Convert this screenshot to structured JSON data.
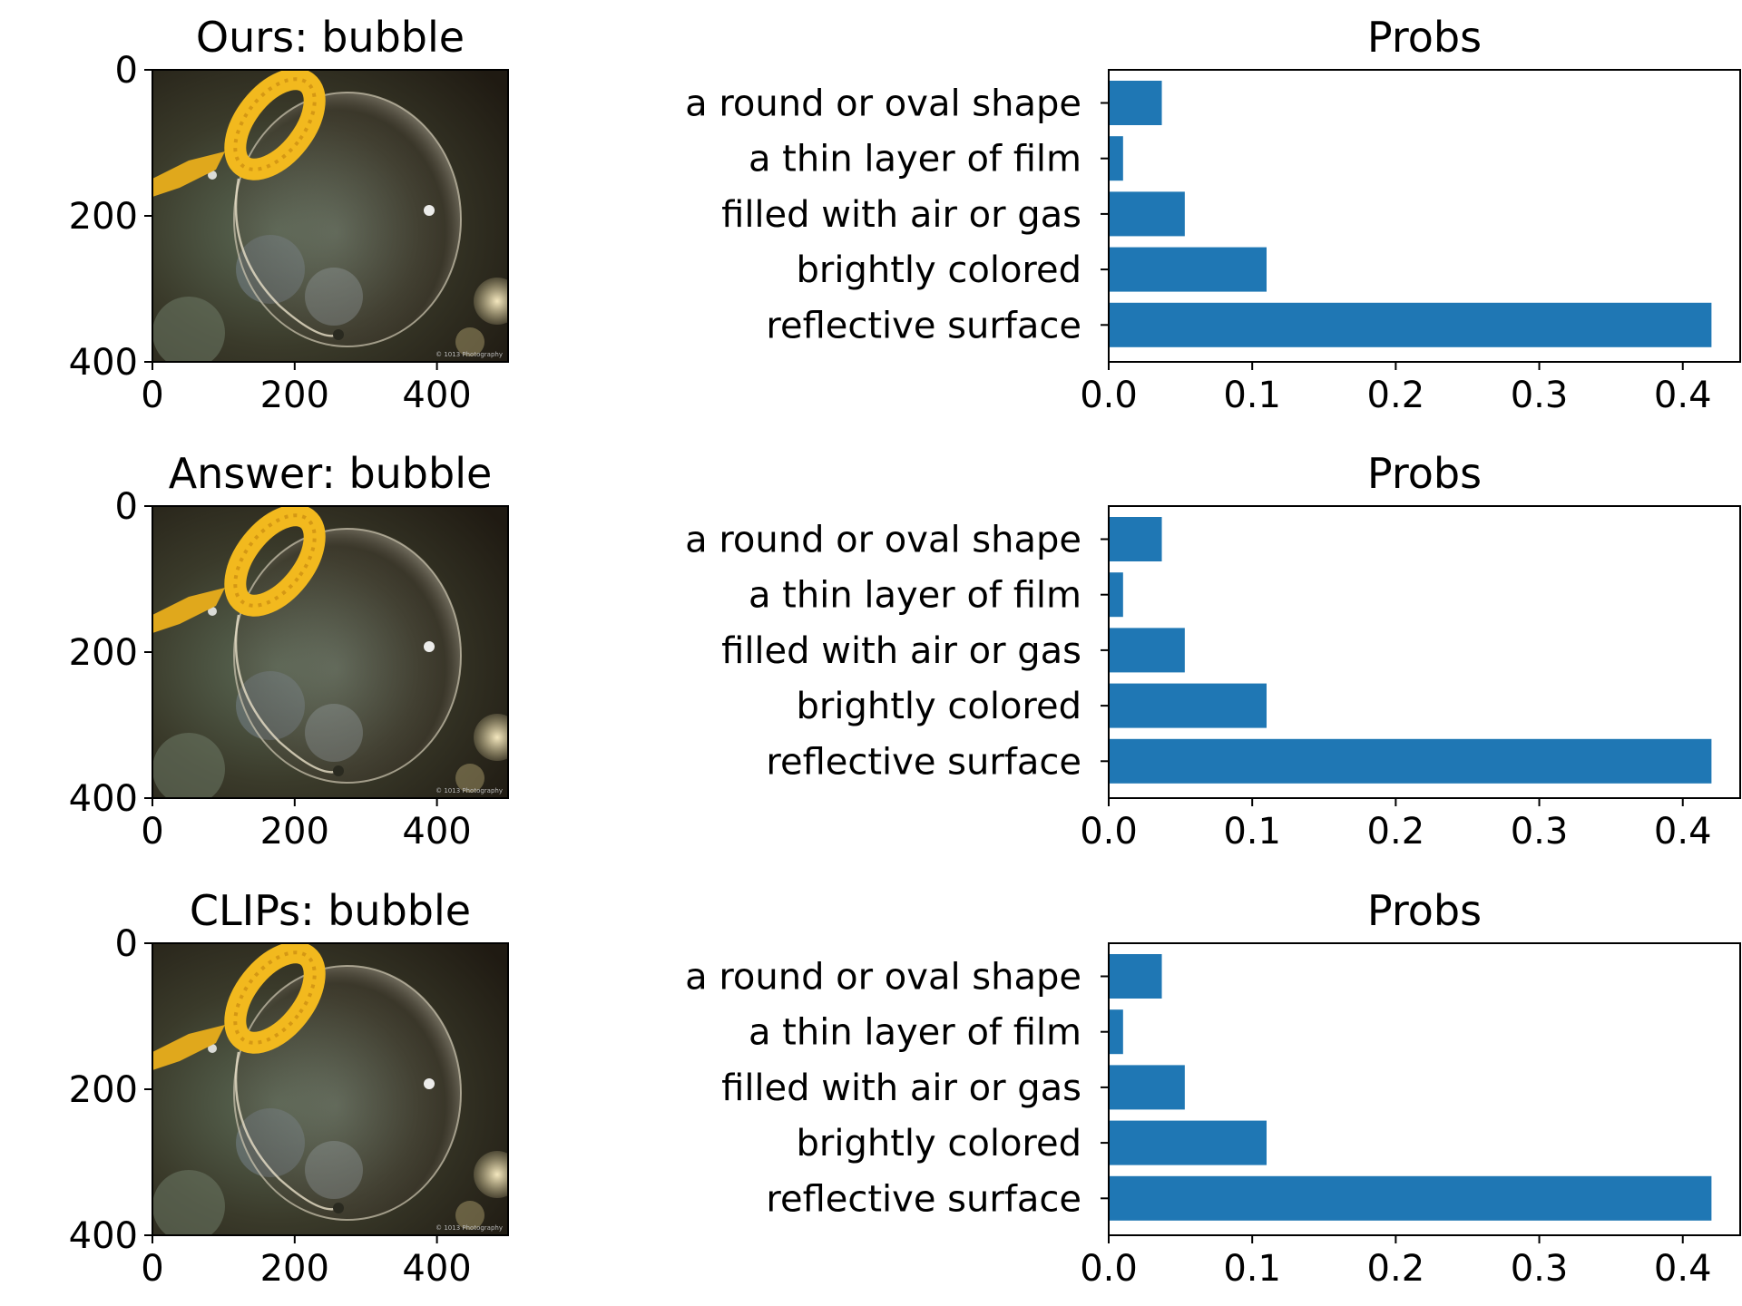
{
  "bar_color": "#1f77b4",
  "chart_data": [
    {
      "type": "image",
      "title": "Ours: bubble",
      "image_subject": "soap bubble on a yellow bubble wand",
      "x_ticks": [
        "0",
        "200",
        "400"
      ],
      "y_ticks": [
        "0",
        "200",
        "400"
      ],
      "xlim": [
        0,
        500
      ],
      "ylim": [
        400,
        0
      ]
    },
    {
      "type": "bar",
      "orientation": "horizontal",
      "title": "Probs",
      "categories": [
        "a round or oval shape",
        "a thin layer of film",
        "filled with air or gas",
        "brightly colored",
        "reflective surface"
      ],
      "values": [
        0.037,
        0.01,
        0.053,
        0.11,
        0.42
      ],
      "xlim": [
        0,
        0.44
      ],
      "x_ticks": [
        "0.0",
        "0.1",
        "0.2",
        "0.3",
        "0.4"
      ]
    },
    {
      "type": "image",
      "title": "Answer: bubble",
      "image_subject": "soap bubble on a yellow bubble wand",
      "x_ticks": [
        "0",
        "200",
        "400"
      ],
      "y_ticks": [
        "0",
        "200",
        "400"
      ],
      "xlim": [
        0,
        500
      ],
      "ylim": [
        400,
        0
      ]
    },
    {
      "type": "bar",
      "orientation": "horizontal",
      "title": "Probs",
      "categories": [
        "a round or oval shape",
        "a thin layer of film",
        "filled with air or gas",
        "brightly colored",
        "reflective surface"
      ],
      "values": [
        0.037,
        0.01,
        0.053,
        0.11,
        0.42
      ],
      "xlim": [
        0,
        0.44
      ],
      "x_ticks": [
        "0.0",
        "0.1",
        "0.2",
        "0.3",
        "0.4"
      ]
    },
    {
      "type": "image",
      "title": "CLIPs: bubble",
      "image_subject": "soap bubble on a yellow bubble wand",
      "x_ticks": [
        "0",
        "200",
        "400"
      ],
      "y_ticks": [
        "0",
        "200",
        "400"
      ],
      "xlim": [
        0,
        500
      ],
      "ylim": [
        400,
        0
      ]
    },
    {
      "type": "bar",
      "orientation": "horizontal",
      "title": "Probs",
      "categories": [
        "a round or oval shape",
        "a thin layer of film",
        "filled with air or gas",
        "brightly colored",
        "reflective surface"
      ],
      "values": [
        0.037,
        0.01,
        0.053,
        0.11,
        0.42
      ],
      "xlim": [
        0,
        0.44
      ],
      "x_ticks": [
        "0.0",
        "0.1",
        "0.2",
        "0.3",
        "0.4"
      ]
    }
  ]
}
